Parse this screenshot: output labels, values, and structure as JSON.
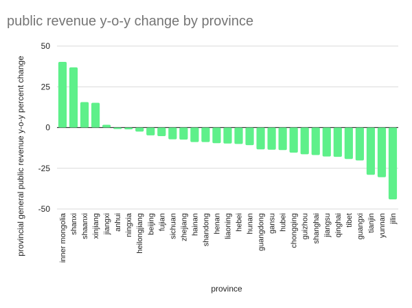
{
  "chart_data": {
    "type": "bar",
    "title": "public revenue y-o-y change by province",
    "xlabel": "province",
    "ylabel": "provincial general public revenue y-o-y percent change",
    "ylim": [
      -50,
      50
    ],
    "yticks": [
      50,
      25,
      0,
      -25,
      -50
    ],
    "grid": true,
    "legend": "none",
    "bar_color": "#5ef08a",
    "categories": [
      "inner mongolia",
      "shanxi",
      "shaanxi",
      "xinjiang",
      "jiangxi",
      "anhui",
      "ningxia",
      "heilongjiang",
      "beijing",
      "fujian",
      "sichuan",
      "zhejiang",
      "hainan",
      "shandong",
      "henan",
      "liaoning",
      "hebei",
      "hunan",
      "guangdong",
      "gansu",
      "hubei",
      "chongqing",
      "guizhou",
      "shanghai",
      "jiangsu",
      "qinghai",
      "tibet",
      "guangxi",
      "tianjin",
      "yunnan",
      "jilin"
    ],
    "values": [
      40.3,
      36.9,
      15.6,
      15.2,
      1.7,
      -0.9,
      -1.1,
      -2.5,
      -4.8,
      -5.3,
      -7.2,
      -7.4,
      -8.9,
      -8.9,
      -9.6,
      -9.8,
      -10.1,
      -10.8,
      -13.4,
      -13.6,
      -13.8,
      -15.4,
      -16.4,
      -16.9,
      -17.8,
      -18.0,
      -19.3,
      -20.2,
      -29.0,
      -30.5,
      -44.1
    ]
  }
}
